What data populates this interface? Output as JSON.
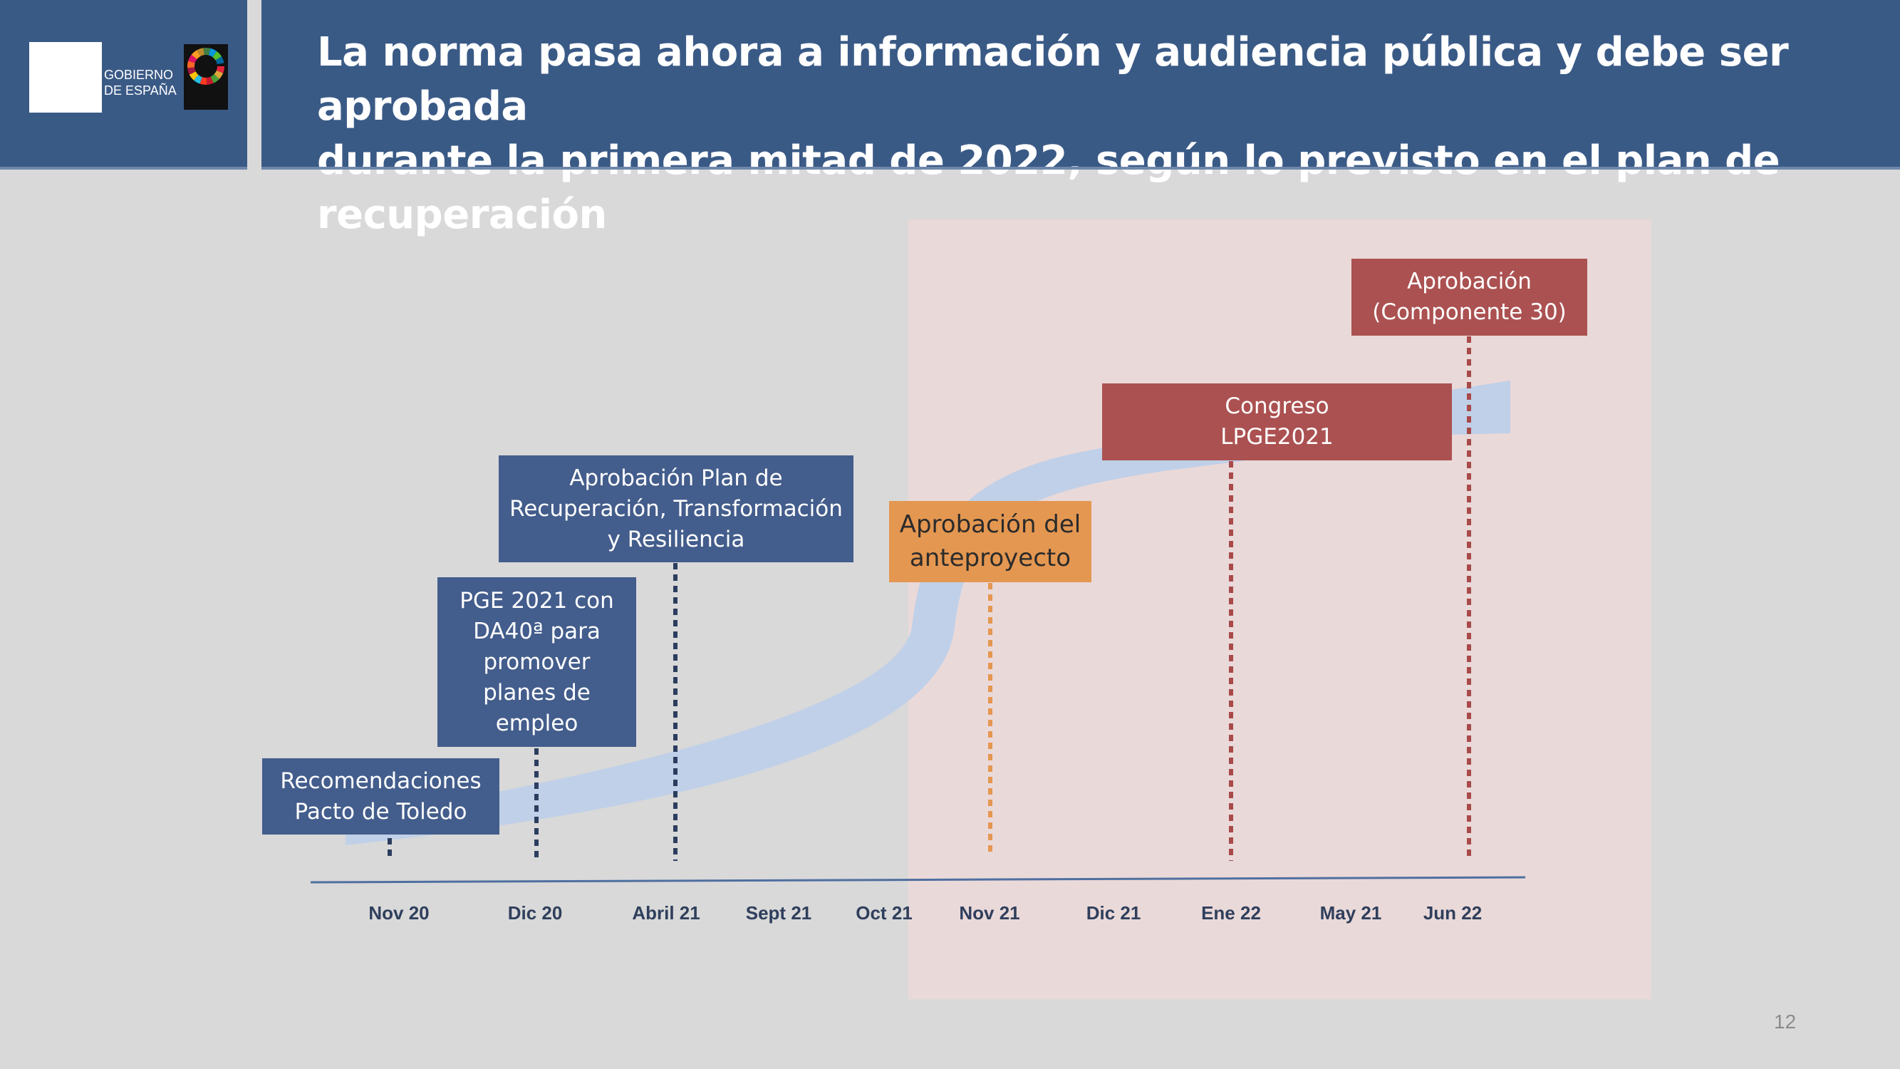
{
  "header": {
    "title_line1": "La norma pasa ahora a información y audiencia pública y debe ser aprobada",
    "title_line2": "durante la primera mitad de 2022, según lo previsto en el plan de recuperación",
    "logo_line1": "GOBIERNO",
    "logo_line2": "DE ESPAÑA"
  },
  "milestones": {
    "toledo": "Recomendaciones\nPacto de Toledo",
    "pge2021": "PGE 2021 con\nDA40ª para\npromover\nplanes de\nempleo",
    "plan": "Aprobación Plan de\nRecuperación, Transformación\ny Resiliencia",
    "anteproyecto": "Aprobación del\nanteproyecto",
    "congreso": "Congreso\nLPGE2021",
    "aprobacion": "Aprobación\n(Componente 30)"
  },
  "axis_ticks": [
    "Nov 20",
    "Dic 20",
    "Abril 21",
    "Sept 21",
    "Oct 21",
    "Nov 21",
    "Dic 21",
    "Ene 22",
    "May 21",
    "Jun 22"
  ],
  "page_number": "12",
  "colors": {
    "header_blue": "#3a5a86",
    "box_blue": "#435d8c",
    "box_red": "#ab5151",
    "box_orange": "#e49751",
    "highlight": "#ead9d9",
    "arrow": "#c0d0e8"
  }
}
